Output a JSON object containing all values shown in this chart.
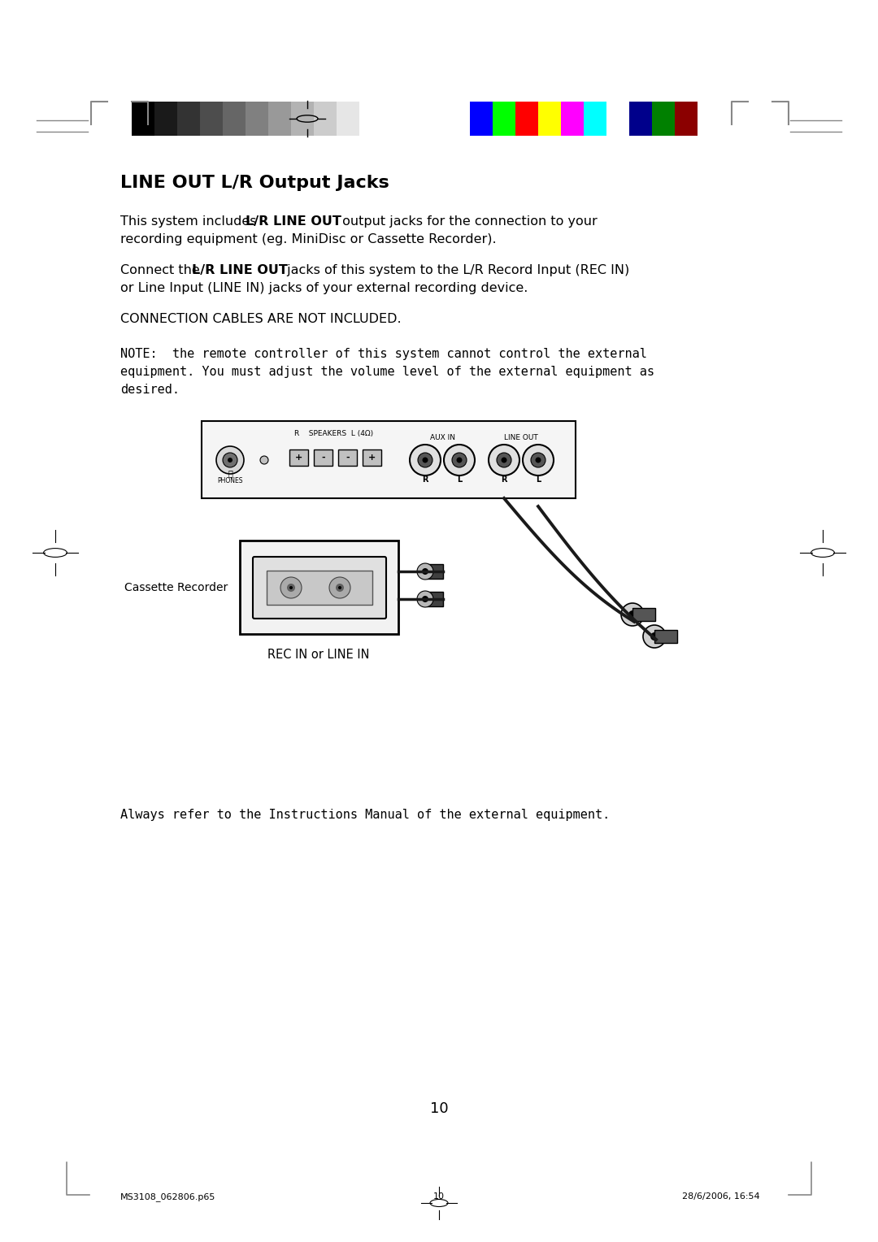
{
  "bg_color": "#ffffff",
  "title": "LINE OUT L/R Output Jacks",
  "para3": "CONNECTION CABLES ARE NOT INCLUDED.",
  "para4_line1": "NOTE:  the remote controller of this system cannot control the external",
  "para4_line2": "equipment. You must adjust the volume level of the external equipment as",
  "para4_line3": "desired.",
  "diagram_label_cassette": "Cassette Recorder",
  "diagram_label_rec": "REC IN or LINE IN",
  "always_text": "Always refer to the Instructions Manual of the external equipment.",
  "page_number": "10",
  "footer_left": "MS3108_062806.p65",
  "footer_center": "10",
  "footer_right": "28/6/2006, 16:54",
  "grayscale_colors": [
    "#000000",
    "#1a1a1a",
    "#333333",
    "#4d4d4d",
    "#666666",
    "#808080",
    "#999999",
    "#b3b3b3",
    "#cccccc",
    "#e6e6e6",
    "#ffffff"
  ],
  "color_bars": [
    "#0000ff",
    "#00ff00",
    "#ff0000",
    "#ffff00",
    "#ff00ff",
    "#00ffff",
    "#ffffff",
    "#00008b",
    "#008000",
    "#8b0000"
  ]
}
